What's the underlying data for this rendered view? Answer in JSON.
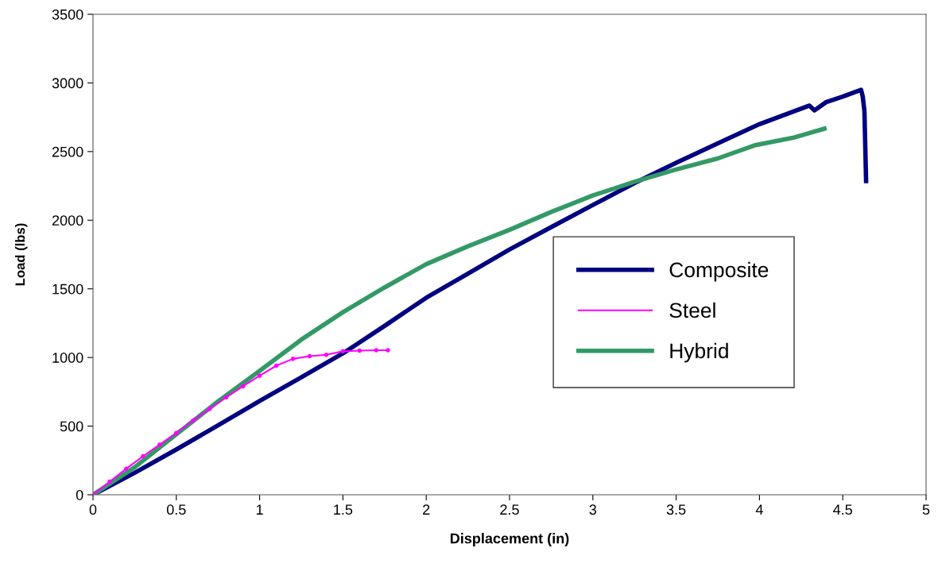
{
  "chart_data": {
    "type": "line",
    "xlabel": "Displacement (in)",
    "ylabel": "Load (lbs)",
    "xlim": [
      0,
      5
    ],
    "xticks": [
      0,
      0.5,
      1,
      1.5,
      2,
      2.5,
      3,
      3.5,
      4,
      4.5,
      5
    ],
    "ylim": [
      0,
      3500
    ],
    "yticks": [
      0,
      500,
      1000,
      1500,
      2000,
      2500,
      3000,
      3500
    ],
    "grid": false,
    "legend": "right",
    "series": [
      {
        "name": "Composite",
        "color": "#000080",
        "x": [
          0,
          0.25,
          0.5,
          0.75,
          1,
          1.25,
          1.5,
          1.75,
          2,
          2.25,
          2.5,
          2.75,
          3,
          3.25,
          3.5,
          3.75,
          4,
          4.3,
          4.33,
          4.4,
          4.5,
          4.61,
          4.62,
          4.63,
          4.64
        ],
        "values": [
          0,
          160,
          330,
          505,
          683,
          855,
          1030,
          1230,
          1435,
          1610,
          1787,
          1950,
          2111,
          2270,
          2418,
          2560,
          2700,
          2835,
          2800,
          2860,
          2900,
          2950,
          2900,
          2795,
          2285
        ]
      },
      {
        "name": "Steel",
        "color": "#ff00ff",
        "marker": "circle",
        "x": [
          0,
          0.1,
          0.2,
          0.3,
          0.4,
          0.5,
          0.6,
          0.7,
          0.8,
          0.9,
          1,
          1.1,
          1.2,
          1.3,
          1.4,
          1.5,
          1.6,
          1.7,
          1.77
        ],
        "values": [
          0,
          95,
          190,
          280,
          365,
          450,
          540,
          625,
          710,
          790,
          867,
          940,
          990,
          1010,
          1020,
          1045,
          1050,
          1053,
          1053
        ]
      },
      {
        "name": "Hybrid",
        "color": "#339966",
        "x": [
          0,
          0.25,
          0.5,
          0.75,
          1,
          1.25,
          1.5,
          1.75,
          2,
          2.25,
          2.5,
          2.75,
          3,
          3.25,
          3.5,
          3.75,
          3.97,
          4.2,
          4.39
        ],
        "values": [
          0,
          200,
          440,
          680,
          902,
          1130,
          1330,
          1510,
          1680,
          1810,
          1930,
          2060,
          2180,
          2280,
          2370,
          2450,
          2545,
          2600,
          2667
        ]
      }
    ]
  }
}
